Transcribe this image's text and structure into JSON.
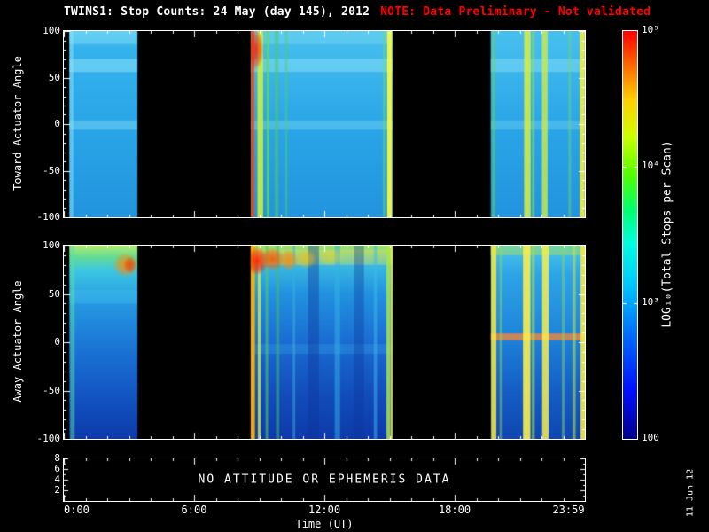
{
  "title": {
    "main": "TWINS1: Stop Counts: 24 May (day 145), 2012",
    "note": "NOTE: Data Preliminary - Not validated",
    "note_color": "#ff0000"
  },
  "timestamp": "11 Jun 12",
  "xaxis": {
    "label": "Time (UT)"
  },
  "status_panel": {
    "message": "NO ATTITUDE OR EPHEMERIS DATA"
  },
  "chart_data": {
    "type": "heatmap",
    "title": "TWINS1: Stop Counts: 24 May (day 145), 2012",
    "xlabel": "Time (UT)",
    "x_range_hours": [
      0,
      24
    ],
    "x_major_step": 6,
    "x_minor_step": 1,
    "x_ticks": [
      {
        "hour": 0,
        "label": "0:00"
      },
      {
        "hour": 6,
        "label": "6:00"
      },
      {
        "hour": 12,
        "label": "12:00"
      },
      {
        "hour": 18,
        "label": "18:00"
      },
      {
        "hour": 23.983,
        "label": "23:59"
      }
    ],
    "colorbar": {
      "label": "LOG₁₀(Total Stops per Scan)",
      "scale": "log10",
      "range": [
        100,
        100000
      ],
      "ticks": [
        {
          "value": 100000,
          "label": "10⁵"
        },
        {
          "value": 10000,
          "label": "10⁴"
        },
        {
          "value": 1000,
          "label": "10³"
        },
        {
          "value": 100,
          "label": "100"
        }
      ],
      "stops": [
        [
          0,
          "#00008a"
        ],
        [
          0.12,
          "#0010ff"
        ],
        [
          0.26,
          "#0070ff"
        ],
        [
          0.38,
          "#00c8ff"
        ],
        [
          0.48,
          "#00ffe0"
        ],
        [
          0.56,
          "#00ff70"
        ],
        [
          0.65,
          "#55ff00"
        ],
        [
          0.74,
          "#ccff00"
        ],
        [
          0.83,
          "#ffd000"
        ],
        [
          0.91,
          "#ff7000"
        ],
        [
          1,
          "#ff0000"
        ]
      ]
    },
    "panels": [
      {
        "name": "toward",
        "ylabel": "Toward Actuator Angle",
        "y_range": [
          -100,
          100
        ],
        "yticks": [
          100,
          50,
          0,
          -50,
          -100
        ],
        "y_major_step": 50,
        "y_minor_step": 10,
        "segments": [
          {
            "t0": 0.25,
            "t1": 3.4,
            "base": [
              [
                0,
                "#55c8f0"
              ],
              [
                0.1,
                "#34b2ec"
              ],
              [
                0.5,
                "#2aa6e8"
              ],
              [
                1,
                "#2294de"
              ]
            ],
            "h_bands": [
              {
                "a0": 86,
                "a1": 100,
                "color": "#7fdcf6",
                "alpha": 0.45
              },
              {
                "a0": 56,
                "a1": 70,
                "color": "#8ae2f8",
                "alpha": 0.55
              },
              {
                "a0": -6,
                "a1": 4,
                "color": "#8ae2f8",
                "alpha": 0.4
              }
            ],
            "v_stripes": [
              {
                "t": 0.35,
                "w": 0.18,
                "color": "#90e8f8",
                "alpha": 0.5
              }
            ],
            "blobs": []
          },
          {
            "t0": 8.6,
            "t1": 15.15,
            "base": [
              [
                0,
                "#48c0ee"
              ],
              [
                0.5,
                "#2aa6e8"
              ],
              [
                1,
                "#2294de"
              ]
            ],
            "h_bands": [
              {
                "a0": 86,
                "a1": 100,
                "color": "#7fdcf6",
                "alpha": 0.4
              },
              {
                "a0": 56,
                "a1": 70,
                "color": "#8ae2f8",
                "alpha": 0.5
              },
              {
                "a0": -6,
                "a1": 4,
                "color": "#8ae2f8",
                "alpha": 0.35
              }
            ],
            "v_stripes": [
              {
                "t": 8.7,
                "w": 0.14,
                "color": "#ff4400",
                "alpha": 0.9
              },
              {
                "t": 9.05,
                "w": 0.26,
                "color": "#ccf03a",
                "alpha": 0.9
              },
              {
                "t": 9.4,
                "w": 0.12,
                "color": "#66dd44",
                "alpha": 0.75
              },
              {
                "t": 9.8,
                "w": 0.16,
                "color": "#4ecc66",
                "alpha": 0.6
              },
              {
                "t": 10.25,
                "w": 0.1,
                "color": "#55d060",
                "alpha": 0.5
              },
              {
                "t": 14.75,
                "w": 0.1,
                "color": "#7fe04e",
                "alpha": 0.5
              },
              {
                "t": 15.0,
                "w": 0.22,
                "color": "#f8f83c",
                "alpha": 0.95
              }
            ],
            "blobs": [
              {
                "t": 8.85,
                "a": 80,
                "rt": 0.35,
                "ra": 22,
                "color": "#ff2200",
                "alpha": 0.85
              }
            ]
          },
          {
            "t0": 19.65,
            "t1": 24,
            "base": [
              [
                0,
                "#48c0ee"
              ],
              [
                0.5,
                "#2aa6e8"
              ],
              [
                1,
                "#2294de"
              ]
            ],
            "h_bands": [
              {
                "a0": 56,
                "a1": 70,
                "color": "#8ae2f8",
                "alpha": 0.45
              },
              {
                "a0": -6,
                "a1": 4,
                "color": "#8ae2f8",
                "alpha": 0.3
              }
            ],
            "v_stripes": [
              {
                "t": 19.8,
                "w": 0.15,
                "color": "#6fd84c",
                "alpha": 0.45
              },
              {
                "t": 21.35,
                "w": 0.3,
                "color": "#d8ee44",
                "alpha": 0.85
              },
              {
                "t": 21.62,
                "w": 0.12,
                "color": "#8ce05a",
                "alpha": 0.55
              },
              {
                "t": 22.15,
                "w": 0.26,
                "color": "#cfec46",
                "alpha": 0.8
              },
              {
                "t": 23.3,
                "w": 0.12,
                "color": "#7cd85c",
                "alpha": 0.45
              },
              {
                "t": 23.88,
                "w": 0.22,
                "color": "#f4ec40",
                "alpha": 0.9
              }
            ],
            "blobs": []
          }
        ]
      },
      {
        "name": "away",
        "ylabel": "Away Actuator Angle",
        "y_range": [
          -100,
          100
        ],
        "yticks": [
          100,
          50,
          0,
          -50,
          -100
        ],
        "y_major_step": 50,
        "y_minor_step": 10,
        "segments": [
          {
            "t0": 0.25,
            "t1": 3.4,
            "base": [
              [
                0,
                "#b4ec6e"
              ],
              [
                0.06,
                "#62dc96"
              ],
              [
                0.13,
                "#3cc6e4"
              ],
              [
                0.3,
                "#2698e2"
              ],
              [
                0.55,
                "#1a72d4"
              ],
              [
                0.8,
                "#1252c0"
              ],
              [
                1,
                "#0d3aaa"
              ]
            ],
            "h_bands": [
              {
                "a0": 40,
                "a1": 54,
                "color": "#44c4ee",
                "alpha": 0.35
              }
            ],
            "v_stripes": [
              {
                "t": 0.4,
                "w": 0.2,
                "color": "#58e0a8",
                "alpha": 0.5
              }
            ],
            "blobs": [
              {
                "t": 2.85,
                "a": 80,
                "rt": 0.6,
                "ra": 13,
                "color": "#ff8800",
                "alpha": 0.85
              },
              {
                "t": 3.05,
                "a": 80,
                "rt": 0.3,
                "ra": 9,
                "color": "#ee3300",
                "alpha": 0.7
              }
            ]
          },
          {
            "t0": 8.6,
            "t1": 15.15,
            "base": [
              [
                0,
                "#a8e462"
              ],
              [
                0.09,
                "#3cbce2"
              ],
              [
                0.25,
                "#2292e0"
              ],
              [
                0.5,
                "#1a6cd2"
              ],
              [
                0.78,
                "#124cba"
              ],
              [
                1,
                "#0d3aaa"
              ]
            ],
            "h_bands": [
              {
                "a0": 80,
                "a1": 96,
                "color": "#e8e44a",
                "alpha": 0.4
              },
              {
                "a0": -12,
                "a1": -2,
                "color": "#38aae6",
                "alpha": 0.3
              }
            ],
            "v_stripes": [
              {
                "t": 8.7,
                "w": 0.2,
                "color": "#ffb200",
                "alpha": 0.95
              },
              {
                "t": 9.0,
                "w": 0.13,
                "color": "#d8ec44",
                "alpha": 0.8
              },
              {
                "t": 9.35,
                "w": 0.12,
                "color": "#58cc58",
                "alpha": 0.6
              },
              {
                "t": 9.85,
                "w": 0.15,
                "color": "#46bc6a",
                "alpha": 0.5
              },
              {
                "t": 10.6,
                "w": 0.12,
                "color": "#3cb0dc",
                "alpha": 0.5
              },
              {
                "t": 11.5,
                "w": 0.5,
                "color": "#0c3498",
                "alpha": 0.4
              },
              {
                "t": 12.6,
                "w": 0.25,
                "color": "#34b4e4",
                "alpha": 0.5
              },
              {
                "t": 13.6,
                "w": 0.45,
                "color": "#0c3498",
                "alpha": 0.35
              },
              {
                "t": 14.35,
                "w": 0.15,
                "color": "#3cbce8",
                "alpha": 0.5
              },
              {
                "t": 14.95,
                "w": 0.18,
                "color": "#a8e84a",
                "alpha": 0.85
              },
              {
                "t": 15.1,
                "w": 0.1,
                "color": "#f4ec44",
                "alpha": 0.8
              }
            ],
            "blobs": [
              {
                "t": 8.9,
                "a": 84,
                "rt": 0.5,
                "ra": 15,
                "color": "#ff2200",
                "alpha": 0.95
              },
              {
                "t": 9.6,
                "a": 86,
                "rt": 0.55,
                "ra": 12,
                "color": "#ff5500",
                "alpha": 0.9
              },
              {
                "t": 10.35,
                "a": 85,
                "rt": 0.45,
                "ra": 11,
                "color": "#ff8800",
                "alpha": 0.85
              },
              {
                "t": 11.15,
                "a": 86,
                "rt": 0.5,
                "ra": 10,
                "color": "#ffbb00",
                "alpha": 0.65
              },
              {
                "t": 12.3,
                "a": 88,
                "rt": 0.6,
                "ra": 9,
                "color": "#ffd700",
                "alpha": 0.45
              }
            ]
          },
          {
            "t0": 19.65,
            "t1": 24,
            "base": [
              [
                0,
                "#4cc6ec"
              ],
              [
                0.15,
                "#2ea4e6"
              ],
              [
                0.45,
                "#1f86da"
              ],
              [
                0.75,
                "#155ec6"
              ],
              [
                1,
                "#0f46b0"
              ]
            ],
            "h_bands": [
              {
                "a0": 90,
                "a1": 100,
                "color": "#a8e05c",
                "alpha": 0.5
              },
              {
                "a0": 2,
                "a1": 9,
                "color": "#ff8833",
                "alpha": 0.75
              }
            ],
            "v_stripes": [
              {
                "t": 19.8,
                "w": 0.24,
                "color": "#f8e844",
                "alpha": 0.85
              },
              {
                "t": 20.12,
                "w": 0.1,
                "color": "#8cdc58",
                "alpha": 0.5
              },
              {
                "t": 21.32,
                "w": 0.34,
                "color": "#f8ee50",
                "alpha": 0.9
              },
              {
                "t": 21.62,
                "w": 0.14,
                "color": "#a8e055",
                "alpha": 0.55
              },
              {
                "t": 22.18,
                "w": 0.3,
                "color": "#f8ee50",
                "alpha": 0.85
              },
              {
                "t": 23.0,
                "w": 0.12,
                "color": "#84d862",
                "alpha": 0.5
              },
              {
                "t": 23.5,
                "w": 0.15,
                "color": "#bce858",
                "alpha": 0.55
              },
              {
                "t": 23.9,
                "w": 0.2,
                "color": "#f8e844",
                "alpha": 0.9
              }
            ],
            "blobs": []
          }
        ]
      }
    ],
    "status_panel": {
      "message": "NO ATTITUDE OR EPHEMERIS DATA",
      "y_range": [
        0,
        8
      ],
      "yticks": [
        8,
        6,
        4,
        2
      ],
      "y_major_step": 2,
      "y_minor_step": 1
    }
  }
}
